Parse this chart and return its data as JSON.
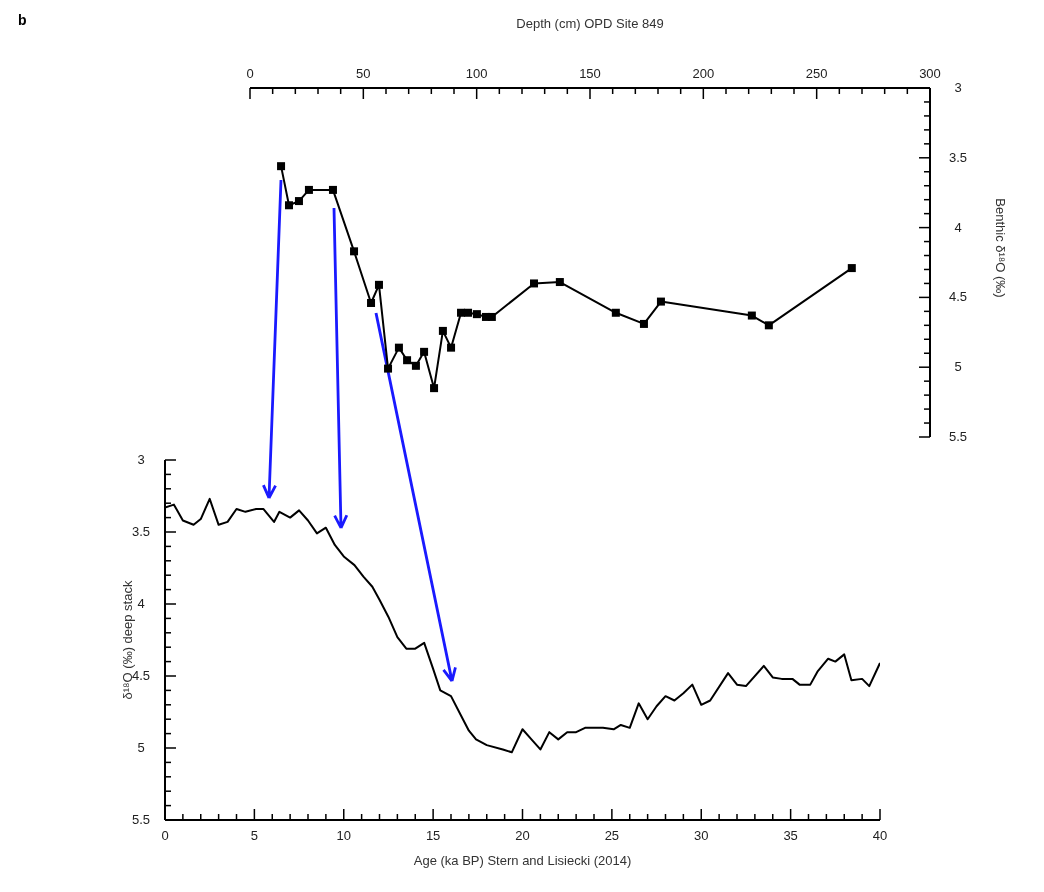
{
  "chart_data": [
    {
      "type": "line",
      "annotations": [
        "b"
      ],
      "xlabel": "Depth (cm) OPD Site 849",
      "ylabel": "Benthic δ¹⁸O (‰)",
      "marker": "square",
      "line_style": "solid",
      "grid": false,
      "legend": false,
      "x": [
        13.7,
        17.2,
        21.6,
        26.0,
        36.6,
        45.9,
        53.4,
        56.9,
        60.9,
        65.7,
        69.3,
        73.2,
        76.8,
        81.2,
        85.1,
        88.7,
        93.1,
        96.2,
        100.1,
        104.1,
        106.7,
        125.3,
        136.7,
        161.4,
        173.8,
        181.3,
        221.4,
        228.9,
        265.5
      ],
      "series": [
        {
          "color": "#000000",
          "values": [
            3.56,
            3.84,
            3.81,
            3.73,
            3.73,
            4.17,
            4.54,
            4.41,
            5.01,
            4.86,
            4.95,
            4.99,
            4.89,
            5.15,
            4.74,
            4.86,
            4.61,
            4.61,
            4.62,
            4.64,
            4.64,
            4.4,
            4.39,
            4.61,
            4.69,
            4.53,
            4.63,
            4.7,
            4.29
          ]
        }
      ],
      "xlim": [
        0,
        300
      ],
      "xticks": [
        0,
        {
          "value": 10,
          "label": null
        },
        {
          "value": 20,
          "label": null
        },
        {
          "value": 30,
          "label": null
        },
        {
          "value": 40,
          "label": null
        },
        50,
        {
          "value": 60,
          "label": null
        },
        {
          "value": 70,
          "label": null
        },
        {
          "value": 80,
          "label": null
        },
        {
          "value": 90,
          "label": null
        },
        100,
        {
          "value": 110,
          "label": null
        },
        {
          "value": 120,
          "label": null
        },
        {
          "value": 130,
          "label": null
        },
        {
          "value": 140,
          "label": null
        },
        150,
        {
          "value": 160,
          "label": null
        },
        {
          "value": 170,
          "label": null
        },
        {
          "value": 180,
          "label": null
        },
        {
          "value": 190,
          "label": null
        },
        200,
        {
          "value": 210,
          "label": null
        },
        {
          "value": 220,
          "label": null
        },
        {
          "value": 230,
          "label": null
        },
        {
          "value": 240,
          "label": null
        },
        250,
        {
          "value": 260,
          "label": null
        },
        {
          "value": 270,
          "label": null
        },
        {
          "value": 280,
          "label": null
        },
        {
          "value": 290,
          "label": null
        },
        300
      ],
      "ylim": [
        5.5,
        3
      ],
      "yticks": [
        3,
        {
          "value": 3.1,
          "label": null
        },
        {
          "value": 3.2,
          "label": null
        },
        {
          "value": 3.3,
          "label": null
        },
        {
          "value": 3.4,
          "label": null
        },
        3.5,
        {
          "value": 3.6,
          "label": null
        },
        {
          "value": 3.7,
          "label": null
        },
        {
          "value": 3.8,
          "label": null
        },
        {
          "value": 3.9,
          "label": null
        },
        4,
        {
          "value": 4.1,
          "label": null
        },
        {
          "value": 4.2,
          "label": null
        },
        {
          "value": 4.3,
          "label": null
        },
        {
          "value": 4.4,
          "label": null
        },
        4.5,
        {
          "value": 4.6,
          "label": null
        },
        {
          "value": 4.7,
          "label": null
        },
        {
          "value": 4.8,
          "label": null
        },
        {
          "value": 4.9,
          "label": null
        },
        5,
        {
          "value": 5.1,
          "label": null
        },
        {
          "value": 5.2,
          "label": null
        },
        {
          "value": 5.3,
          "label": null
        },
        {
          "value": 5.4,
          "label": null
        },
        5.5
      ]
    },
    {
      "type": "line",
      "xlabel": "Age (ka BP) Stern and Lisiecki (2014)",
      "ylabel": "δ¹⁸O (‰) deep stack",
      "marker": "none",
      "line_style": "solid",
      "grid": false,
      "legend": false,
      "x": [
        0,
        0.5,
        1.0,
        1.6,
        2.0,
        2.5,
        3.0,
        3.5,
        4.0,
        4.5,
        5.1,
        5.5,
        6.1,
        6.4,
        7.0,
        7.5,
        8.0,
        8.5,
        9.0,
        9.5,
        10.0,
        10.6,
        11.1,
        11.6,
        12.0,
        12.5,
        13.0,
        13.5,
        14.0,
        14.5,
        15.0,
        15.4,
        16.0,
        16.5,
        17.0,
        17.4,
        18.0,
        18.9,
        19.4,
        20.0,
        20.5,
        21.0,
        21.5,
        22.0,
        22.5,
        23.0,
        23.5,
        24.5,
        25.1,
        25.5,
        26.0,
        26.5,
        27.0,
        27.5,
        28.0,
        28.5,
        29.0,
        29.5,
        30.0,
        30.5,
        31.5,
        32.0,
        32.5,
        33.5,
        34.0,
        34.5,
        35.1,
        35.5,
        36.1,
        36.5,
        37.1,
        37.5,
        38.0,
        38.4,
        39.0,
        39.4,
        40.0
      ],
      "series": [
        {
          "color": "#000000",
          "values": [
            3.33,
            3.31,
            3.42,
            3.45,
            3.41,
            3.27,
            3.45,
            3.43,
            3.34,
            3.36,
            3.34,
            3.34,
            3.43,
            3.36,
            3.4,
            3.35,
            3.42,
            3.51,
            3.47,
            3.59,
            3.67,
            3.73,
            3.81,
            3.88,
            3.97,
            4.09,
            4.23,
            4.31,
            4.31,
            4.27,
            4.45,
            4.6,
            4.64,
            4.76,
            4.88,
            4.94,
            4.98,
            5.01,
            5.03,
            4.87,
            4.94,
            5.01,
            4.89,
            4.94,
            4.89,
            4.89,
            4.86,
            4.86,
            4.87,
            4.84,
            4.86,
            4.69,
            4.8,
            4.71,
            4.64,
            4.67,
            4.62,
            4.56,
            4.7,
            4.67,
            4.48,
            4.56,
            4.57,
            4.43,
            4.51,
            4.52,
            4.52,
            4.56,
            4.56,
            4.47,
            4.38,
            4.4,
            4.35,
            4.53,
            4.52,
            4.57,
            4.41
          ]
        }
      ],
      "xlim": [
        0,
        40
      ],
      "xticks": [
        0,
        {
          "value": 1,
          "label": null
        },
        {
          "value": 2,
          "label": null
        },
        {
          "value": 3,
          "label": null
        },
        {
          "value": 4,
          "label": null
        },
        5,
        {
          "value": 6,
          "label": null
        },
        {
          "value": 7,
          "label": null
        },
        {
          "value": 8,
          "label": null
        },
        {
          "value": 9,
          "label": null
        },
        10,
        {
          "value": 11,
          "label": null
        },
        {
          "value": 12,
          "label": null
        },
        {
          "value": 13,
          "label": null
        },
        {
          "value": 14,
          "label": null
        },
        15,
        {
          "value": 16,
          "label": null
        },
        {
          "value": 17,
          "label": null
        },
        {
          "value": 18,
          "label": null
        },
        {
          "value": 19,
          "label": null
        },
        20,
        {
          "value": 21,
          "label": null
        },
        {
          "value": 22,
          "label": null
        },
        {
          "value": 23,
          "label": null
        },
        {
          "value": 24,
          "label": null
        },
        25,
        {
          "value": 26,
          "label": null
        },
        {
          "value": 27,
          "label": null
        },
        {
          "value": 28,
          "label": null
        },
        {
          "value": 29,
          "label": null
        },
        30,
        {
          "value": 31,
          "label": null
        },
        {
          "value": 32,
          "label": null
        },
        {
          "value": 33,
          "label": null
        },
        {
          "value": 34,
          "label": null
        },
        35,
        {
          "value": 36,
          "label": null
        },
        {
          "value": 37,
          "label": null
        },
        {
          "value": 38,
          "label": null
        },
        {
          "value": 39,
          "label": null
        },
        40
      ],
      "ylim": [
        5.5,
        3
      ],
      "yticks": [
        3,
        {
          "value": 3.1,
          "label": null
        },
        {
          "value": 3.2,
          "label": null
        },
        {
          "value": 3.3,
          "label": null
        },
        {
          "value": 3.4,
          "label": null
        },
        3.5,
        {
          "value": 3.6,
          "label": null
        },
        {
          "value": 3.7,
          "label": null
        },
        {
          "value": 3.8,
          "label": null
        },
        {
          "value": 3.9,
          "label": null
        },
        4,
        {
          "value": 4.1,
          "label": null
        },
        {
          "value": 4.2,
          "label": null
        },
        {
          "value": 4.3,
          "label": null
        },
        {
          "value": 4.4,
          "label": null
        },
        4.5,
        {
          "value": 4.6,
          "label": null
        },
        {
          "value": 4.7,
          "label": null
        },
        {
          "value": 4.8,
          "label": null
        },
        {
          "value": 4.9,
          "label": null
        },
        5,
        {
          "value": 5.1,
          "label": null
        },
        {
          "value": 5.2,
          "label": null
        },
        {
          "value": 5.3,
          "label": null
        },
        {
          "value": 5.4,
          "label": null
        },
        5.5
      ]
    }
  ]
}
